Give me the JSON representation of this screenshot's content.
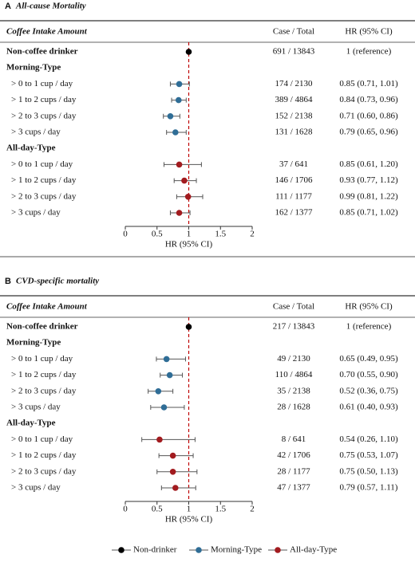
{
  "chart_data": [
    {
      "type": "forest",
      "panel": "A",
      "title": "All-cause Mortality",
      "columns": [
        "Coffee Intake Amount",
        "Case / Total",
        "HR (95% CI)"
      ],
      "xlabel": "HR (95% CI)",
      "xlim": [
        0,
        2
      ],
      "xticks": [
        0,
        0.5,
        1,
        1.5,
        2
      ],
      "reference_line": {
        "value": 1,
        "color": "#c00000"
      },
      "rows": [
        {
          "label": "Non-coffee drinker",
          "style": "bold",
          "color": "#000000",
          "cases": "691 / 13843",
          "hr": 1,
          "lo": null,
          "hi": null,
          "hr_label": "1 (reference)"
        },
        {
          "label": "Morning-Type",
          "style": "bold"
        },
        {
          "label": "> 0 to 1 cup / day",
          "color": "#2f6d96",
          "cases": "174 / 2130",
          "hr": 0.85,
          "lo": 0.71,
          "hi": 1.01,
          "hr_label": "0.85 (0.71, 1.01)"
        },
        {
          "label": "> 1 to 2 cups / day",
          "color": "#2f6d96",
          "cases": "389 / 4864",
          "hr": 0.84,
          "lo": 0.73,
          "hi": 0.96,
          "hr_label": "0.84 (0.73, 0.96)"
        },
        {
          "label": "> 2 to 3 cups / day",
          "color": "#2f6d96",
          "cases": "152 / 2138",
          "hr": 0.71,
          "lo": 0.6,
          "hi": 0.86,
          "hr_label": "0.71 (0.60, 0.86)"
        },
        {
          "label": "> 3 cups / day",
          "color": "#2f6d96",
          "cases": "131 / 1628",
          "hr": 0.79,
          "lo": 0.65,
          "hi": 0.96,
          "hr_label": "0.79 (0.65, 0.96)"
        },
        {
          "label": "All-day-Type",
          "style": "bold"
        },
        {
          "label": "> 0 to 1 cup / day",
          "color": "#a21b1f",
          "cases": "37 / 641",
          "hr": 0.85,
          "lo": 0.61,
          "hi": 1.2,
          "hr_label": "0.85 (0.61, 1.20)"
        },
        {
          "label": "> 1 to 2 cups / day",
          "color": "#a21b1f",
          "cases": "146 / 1706",
          "hr": 0.93,
          "lo": 0.77,
          "hi": 1.12,
          "hr_label": "0.93 (0.77, 1.12)"
        },
        {
          "label": "> 2 to 3 cups / day",
          "color": "#a21b1f",
          "cases": "111 / 1177",
          "hr": 0.99,
          "lo": 0.81,
          "hi": 1.22,
          "hr_label": "0.99 (0.81, 1.22)"
        },
        {
          "label": "> 3 cups / day",
          "color": "#a21b1f",
          "cases": "162 / 1377",
          "hr": 0.85,
          "lo": 0.71,
          "hi": 1.02,
          "hr_label": "0.85 (0.71, 1.02)"
        }
      ]
    },
    {
      "type": "forest",
      "panel": "B",
      "title": "CVD-specific mortality",
      "columns": [
        "Coffee Intake Amount",
        "Case / Total",
        "HR (95% CI)"
      ],
      "xlabel": "HR (95% CI)",
      "xlim": [
        0,
        2
      ],
      "xticks": [
        0,
        0.5,
        1,
        1.5,
        2
      ],
      "reference_line": {
        "value": 1,
        "color": "#c00000"
      },
      "rows": [
        {
          "label": "Non-coffee drinker",
          "style": "bold",
          "color": "#000000",
          "cases": "217 / 13843",
          "hr": 1,
          "lo": null,
          "hi": null,
          "hr_label": "1 (reference)"
        },
        {
          "label": "Morning-Type",
          "style": "bold"
        },
        {
          "label": "> 0 to 1 cup / day",
          "color": "#2f6d96",
          "cases": "49 / 2130",
          "hr": 0.65,
          "lo": 0.49,
          "hi": 0.95,
          "hr_label": "0.65 (0.49, 0.95)"
        },
        {
          "label": "> 1 to 2 cups / day",
          "color": "#2f6d96",
          "cases": "110 / 4864",
          "hr": 0.7,
          "lo": 0.55,
          "hi": 0.9,
          "hr_label": "0.70 (0.55, 0.90)"
        },
        {
          "label": "> 2 to 3 cups / day",
          "color": "#2f6d96",
          "cases": "35 / 2138",
          "hr": 0.52,
          "lo": 0.36,
          "hi": 0.75,
          "hr_label": "0.52 (0.36, 0.75)"
        },
        {
          "label": "> 3 cups / day",
          "color": "#2f6d96",
          "cases": "28 / 1628",
          "hr": 0.61,
          "lo": 0.4,
          "hi": 0.93,
          "hr_label": "0.61 (0.40, 0.93)"
        },
        {
          "label": "All-day-Type",
          "style": "bold"
        },
        {
          "label": "> 0 to 1 cup / day",
          "color": "#a21b1f",
          "cases": "8 / 641",
          "hr": 0.54,
          "lo": 0.26,
          "hi": 1.1,
          "hr_label": "0.54 (0.26, 1.10)"
        },
        {
          "label": "> 1 to 2 cups / day",
          "color": "#a21b1f",
          "cases": "42 / 1706",
          "hr": 0.75,
          "lo": 0.53,
          "hi": 1.07,
          "hr_label": "0.75 (0.53, 1.07)"
        },
        {
          "label": "> 2 to 3 cups / day",
          "color": "#a21b1f",
          "cases": "28 / 1177",
          "hr": 0.75,
          "lo": 0.5,
          "hi": 1.13,
          "hr_label": "0.75 (0.50, 1.13)"
        },
        {
          "label": "> 3 cups / day",
          "color": "#a21b1f",
          "cases": "47 / 1377",
          "hr": 0.79,
          "lo": 0.57,
          "hi": 1.11,
          "hr_label": "0.79 (0.57, 1.11)"
        }
      ]
    }
  ],
  "legend": {
    "position": "bottom",
    "items": [
      {
        "name": "Non-drinker",
        "color": "#000000"
      },
      {
        "name": "Morning-Type",
        "color": "#2f6d96"
      },
      {
        "name": "All-day-Type",
        "color": "#a21b1f"
      }
    ]
  }
}
